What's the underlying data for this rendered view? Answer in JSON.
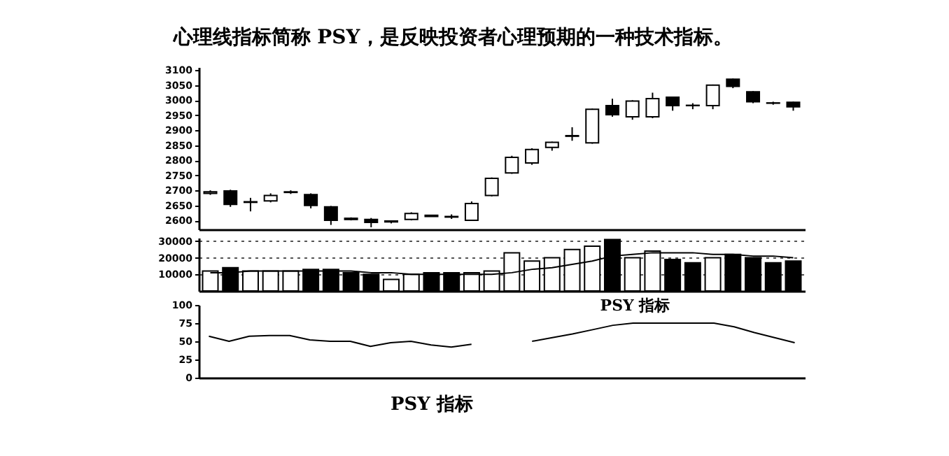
{
  "chart_data": [
    {
      "type": "candlestick",
      "title": "心理线指标简称 PSY，是反映投资者心理预期的一种技术指标。",
      "categories": [
        null,
        null,
        null,
        null,
        null,
        null,
        null,
        null,
        null,
        null,
        null,
        null,
        null,
        null,
        null,
        null,
        null,
        null,
        null,
        null,
        null,
        null,
        null,
        null,
        null,
        null,
        null,
        null,
        null,
        null
      ],
      "ohlc": [
        [
          2690,
          2700,
          2685,
          2695
        ],
        [
          2698,
          2702,
          2645,
          2653
        ],
        [
          2660,
          2675,
          2630,
          2662
        ],
        [
          2665,
          2690,
          2660,
          2683
        ],
        [
          2693,
          2700,
          2688,
          2695
        ],
        [
          2686,
          2690,
          2640,
          2650
        ],
        [
          2645,
          2648,
          2585,
          2600
        ],
        [
          2607,
          2610,
          2600,
          2603
        ],
        [
          2603,
          2608,
          2577,
          2593
        ],
        [
          2598,
          2600,
          2590,
          2595
        ],
        [
          2603,
          2627,
          2600,
          2623
        ],
        [
          2617,
          2618,
          2612,
          2613
        ],
        [
          2611,
          2620,
          2605,
          2613
        ],
        [
          2600,
          2663,
          2598,
          2656
        ],
        [
          2683,
          2743,
          2680,
          2740
        ],
        [
          2758,
          2815,
          2755,
          2810
        ],
        [
          2791,
          2840,
          2785,
          2836
        ],
        [
          2843,
          2862,
          2832,
          2860
        ],
        [
          2880,
          2910,
          2865,
          2882
        ],
        [
          2858,
          2972,
          2855,
          2970
        ],
        [
          2982,
          3005,
          2945,
          2952
        ],
        [
          2945,
          3000,
          2935,
          2997
        ],
        [
          2945,
          3025,
          2940,
          3005
        ],
        [
          3010,
          3012,
          2965,
          2982
        ],
        [
          2982,
          2990,
          2970,
          2983
        ],
        [
          2982,
          3052,
          2970,
          3050
        ],
        [
          3070,
          3072,
          3040,
          3046
        ],
        [
          3028,
          3030,
          2990,
          2995
        ],
        [
          2990,
          2995,
          2985,
          2991
        ],
        [
          2993,
          2995,
          2965,
          2978
        ]
      ],
      "ylim": [
        2570,
        3110
      ],
      "yticks": [
        2600,
        2650,
        2700,
        2750,
        2800,
        2850,
        2900,
        2950,
        3000,
        3050,
        3100
      ],
      "tick_labels": "y"
    },
    {
      "type": "bar",
      "categories": [
        null,
        null,
        null,
        null,
        null,
        null,
        null,
        null,
        null,
        null,
        null,
        null,
        null,
        null,
        null,
        null,
        null,
        null,
        null,
        null,
        null,
        null,
        null,
        null,
        null,
        null,
        null,
        null,
        null,
        null
      ],
      "series": [
        {
          "type": "bar",
          "values": [
            12000,
            14000,
            12000,
            12000,
            12000,
            13000,
            13000,
            11000,
            10000,
            7000,
            10000,
            11000,
            11000,
            11000,
            12000,
            23000,
            18000,
            20000,
            25000,
            27000,
            31000,
            20000,
            24000,
            19000,
            17000,
            20000,
            22000,
            20000,
            17000,
            18000
          ],
          "colors": [
            "#ffffff",
            "#000000",
            "#ffffff",
            "#ffffff",
            "#ffffff",
            "#000000",
            "#000000",
            "#000000",
            "#000000",
            "#ffffff",
            "#ffffff",
            "#000000",
            "#000000",
            "#ffffff",
            "#ffffff",
            "#ffffff",
            "#ffffff",
            "#ffffff",
            "#ffffff",
            "#ffffff",
            "#000000",
            "#ffffff",
            "#ffffff",
            "#000000",
            "#000000",
            "#ffffff",
            "#000000",
            "#000000",
            "#000000",
            "#000000"
          ]
        },
        {
          "type": "line",
          "color": "#000000",
          "values": [
            11000,
            11000,
            12000,
            12000,
            12000,
            12000,
            12000,
            12000,
            11000,
            11000,
            10000,
            10000,
            10000,
            10000,
            10000,
            11000,
            13000,
            14000,
            16000,
            18000,
            21000,
            22000,
            23000,
            23000,
            23000,
            22000,
            22000,
            21000,
            21000,
            20000
          ]
        }
      ],
      "ylim": [
        0,
        32000
      ],
      "yticks": [
        10000,
        20000,
        30000
      ],
      "grid": "y",
      "tick_labels": "y"
    },
    {
      "type": "line",
      "categories": [
        null,
        null,
        null,
        null,
        null,
        null,
        null,
        null,
        null,
        null,
        null,
        null,
        null,
        null,
        null,
        null,
        null,
        null,
        null,
        null,
        null,
        null,
        null,
        null,
        null,
        null,
        null,
        null,
        null,
        null
      ],
      "series": [
        {
          "color": "#000000",
          "values": [
            57,
            50,
            57,
            58,
            58,
            52,
            50,
            50,
            43,
            48,
            50,
            45,
            42,
            46,
            null,
            null,
            50,
            55,
            60,
            66,
            72,
            75,
            75,
            75,
            75,
            75,
            70,
            62,
            55,
            48
          ]
        }
      ],
      "ylim": [
        0,
        100
      ],
      "yticks": [
        0,
        25,
        50,
        75,
        100
      ],
      "tick_labels": "y",
      "annotations": [
        "PSY 指标",
        "PSY 指标"
      ]
    }
  ]
}
